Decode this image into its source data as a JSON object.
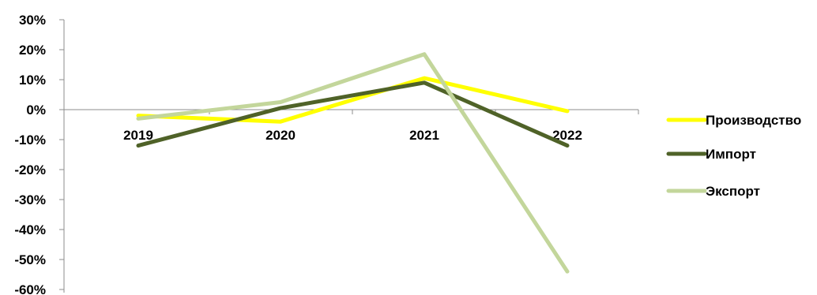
{
  "chart_data": {
    "type": "line",
    "title": "",
    "xlabel": "",
    "ylabel": "",
    "categories": [
      "2019",
      "2020",
      "2021",
      "2022"
    ],
    "ylim": [
      -60,
      30
    ],
    "yticks": [
      30,
      20,
      10,
      0,
      -10,
      -20,
      -30,
      -40,
      -50,
      -60
    ],
    "ytick_labels": [
      "30%",
      "20%",
      "10%",
      "0%",
      "-10%",
      "-20%",
      "-30%",
      "-40%",
      "-50%",
      "-60%"
    ],
    "grid": false,
    "legend_position": "right",
    "series": [
      {
        "name": "Производство",
        "color": "#ffff00",
        "values": [
          -2,
          -4,
          10.5,
          -0.5
        ]
      },
      {
        "name": "Импорт",
        "color": "#4f6228",
        "values": [
          -12,
          0.5,
          9,
          -12
        ]
      },
      {
        "name": "Экспорт",
        "color": "#c3d69b",
        "values": [
          -3,
          2.5,
          18.5,
          -54
        ]
      }
    ]
  }
}
